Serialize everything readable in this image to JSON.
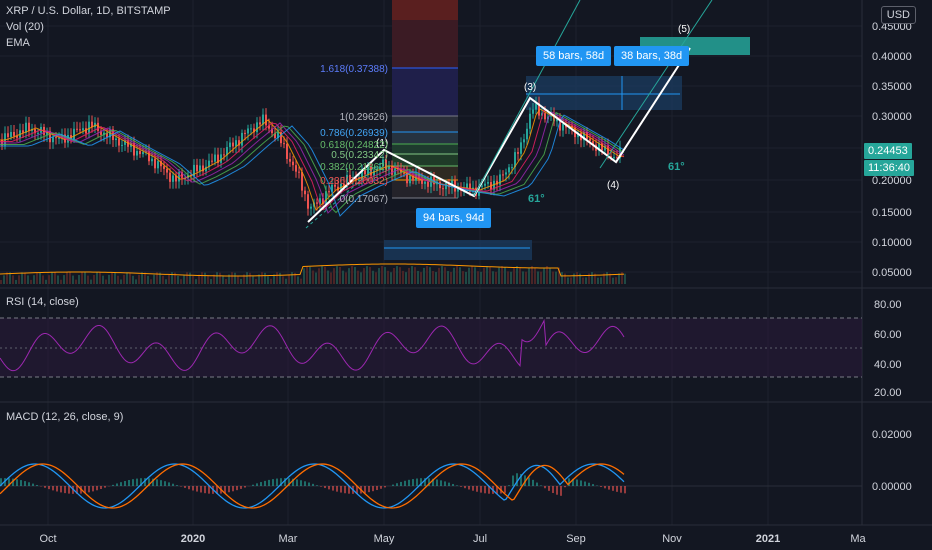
{
  "header": {
    "symbol_line": "XRP / U.S. Dollar, 1D, BITSTAMP",
    "vol_label": "Vol (20)",
    "ema_label": "EMA",
    "currency_button": "USD"
  },
  "price_axis": {
    "ticks": [
      "0.45000",
      "0.40000",
      "0.35000",
      "0.30000",
      "0.20000",
      "0.15000",
      "0.10000",
      "0.05000"
    ],
    "last_price": "0.24453",
    "countdown": "11:36:40"
  },
  "rsi": {
    "title": "RSI (14, close)",
    "ticks": [
      "80.00",
      "60.00",
      "40.00",
      "20.00"
    ]
  },
  "macd": {
    "title": "MACD (12, 26, close, 9)",
    "ticks": [
      "0.02000",
      "0.00000"
    ]
  },
  "time_axis": {
    "ticks": [
      "Oct",
      "2020",
      "Mar",
      "May",
      "Jul",
      "Sep",
      "Nov",
      "2021",
      "Ma"
    ]
  },
  "fib_levels": [
    "1.618(0.37388)",
    "1(0.29626)",
    "0.786(0.26939)",
    "0.618(0.24822)",
    "0.5(0.23342)",
    "0.382(0.21862)",
    "0.236(0.20032)",
    "0(0.17067)"
  ],
  "wave_labels": [
    "(1)",
    "(3)",
    "(4)",
    "(5)"
  ],
  "annotations": {
    "bars_94": "94 bars, 94d",
    "bars_58": "58 bars, 58d",
    "bars_38": "38 bars, 38d",
    "angle_1": "61°",
    "angle_2": "61°"
  },
  "colors": {
    "background": "#131722",
    "up": "#26a69a",
    "down": "#ef5350",
    "rsi_line": "#9c27b0",
    "macd_line": "#2196f3",
    "signal_line": "#ff6d00",
    "last_price_tag": "#26a69a",
    "annotation_box": "#2196f3"
  }
}
